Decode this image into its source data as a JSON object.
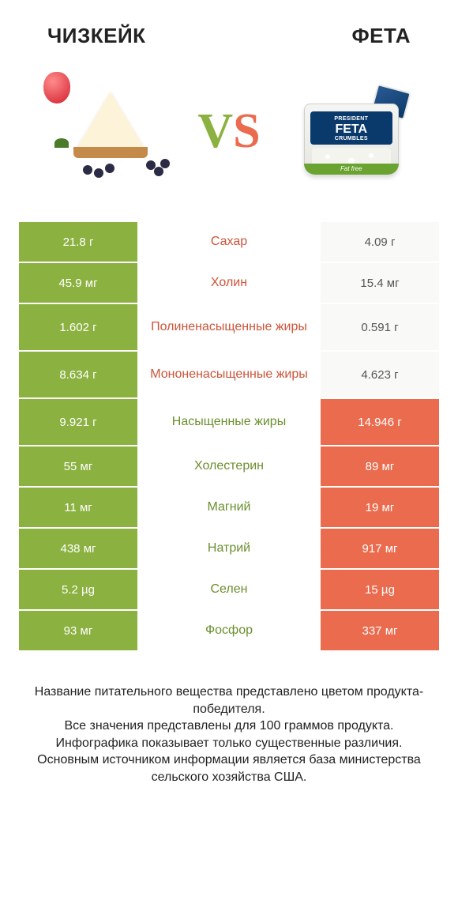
{
  "colors": {
    "green": "#8bb140",
    "orange": "#ea6b4d",
    "vs_v": "#8bb140",
    "vs_s": "#ea6b4d",
    "text_green": "#6b8f2e",
    "text_orange": "#cd5339",
    "background": "#ffffff"
  },
  "header": {
    "left_title": "ЧИЗКЕЙК",
    "right_title": "ФЕТА"
  },
  "vs": {
    "v": "V",
    "s": "S"
  },
  "feta_package": {
    "brand": "PRESIDENT",
    "name": "FETA",
    "sub": "CRUMBLES",
    "band": "Fat free"
  },
  "rows": [
    {
      "left": "21.8 г",
      "label": "Сахар",
      "right": "4.09 г",
      "winner": "right",
      "tall": false
    },
    {
      "left": "45.9 мг",
      "label": "Холин",
      "right": "15.4 мг",
      "winner": "right",
      "tall": false
    },
    {
      "left": "1.602 г",
      "label": "Полиненасыщенные жиры",
      "right": "0.591 г",
      "winner": "right",
      "tall": true
    },
    {
      "left": "8.634 г",
      "label": "Мононенасыщенные жиры",
      "right": "4.623 г",
      "winner": "right",
      "tall": true
    },
    {
      "left": "9.921 г",
      "label": "Насыщенные жиры",
      "right": "14.946 г",
      "winner": "left",
      "tall": true
    },
    {
      "left": "55 мг",
      "label": "Холестерин",
      "right": "89 мг",
      "winner": "left",
      "tall": false
    },
    {
      "left": "11 мг",
      "label": "Магний",
      "right": "19 мг",
      "winner": "left",
      "tall": false
    },
    {
      "left": "438 мг",
      "label": "Натрий",
      "right": "917 мг",
      "winner": "left",
      "tall": false
    },
    {
      "left": "5.2 µg",
      "label": "Селен",
      "right": "15 µg",
      "winner": "left",
      "tall": false
    },
    {
      "left": "93 мг",
      "label": "Фосфор",
      "right": "337 мг",
      "winner": "left",
      "tall": false
    }
  ],
  "footer": {
    "line1": "Название питательного вещества представлено цветом продукта-победителя.",
    "line2": "Все значения представлены для 100 граммов продукта.",
    "line3": "Инфографика показывает только существенные различия.",
    "line4": "Основным источником информации является база министерства сельского хозяйства США."
  }
}
